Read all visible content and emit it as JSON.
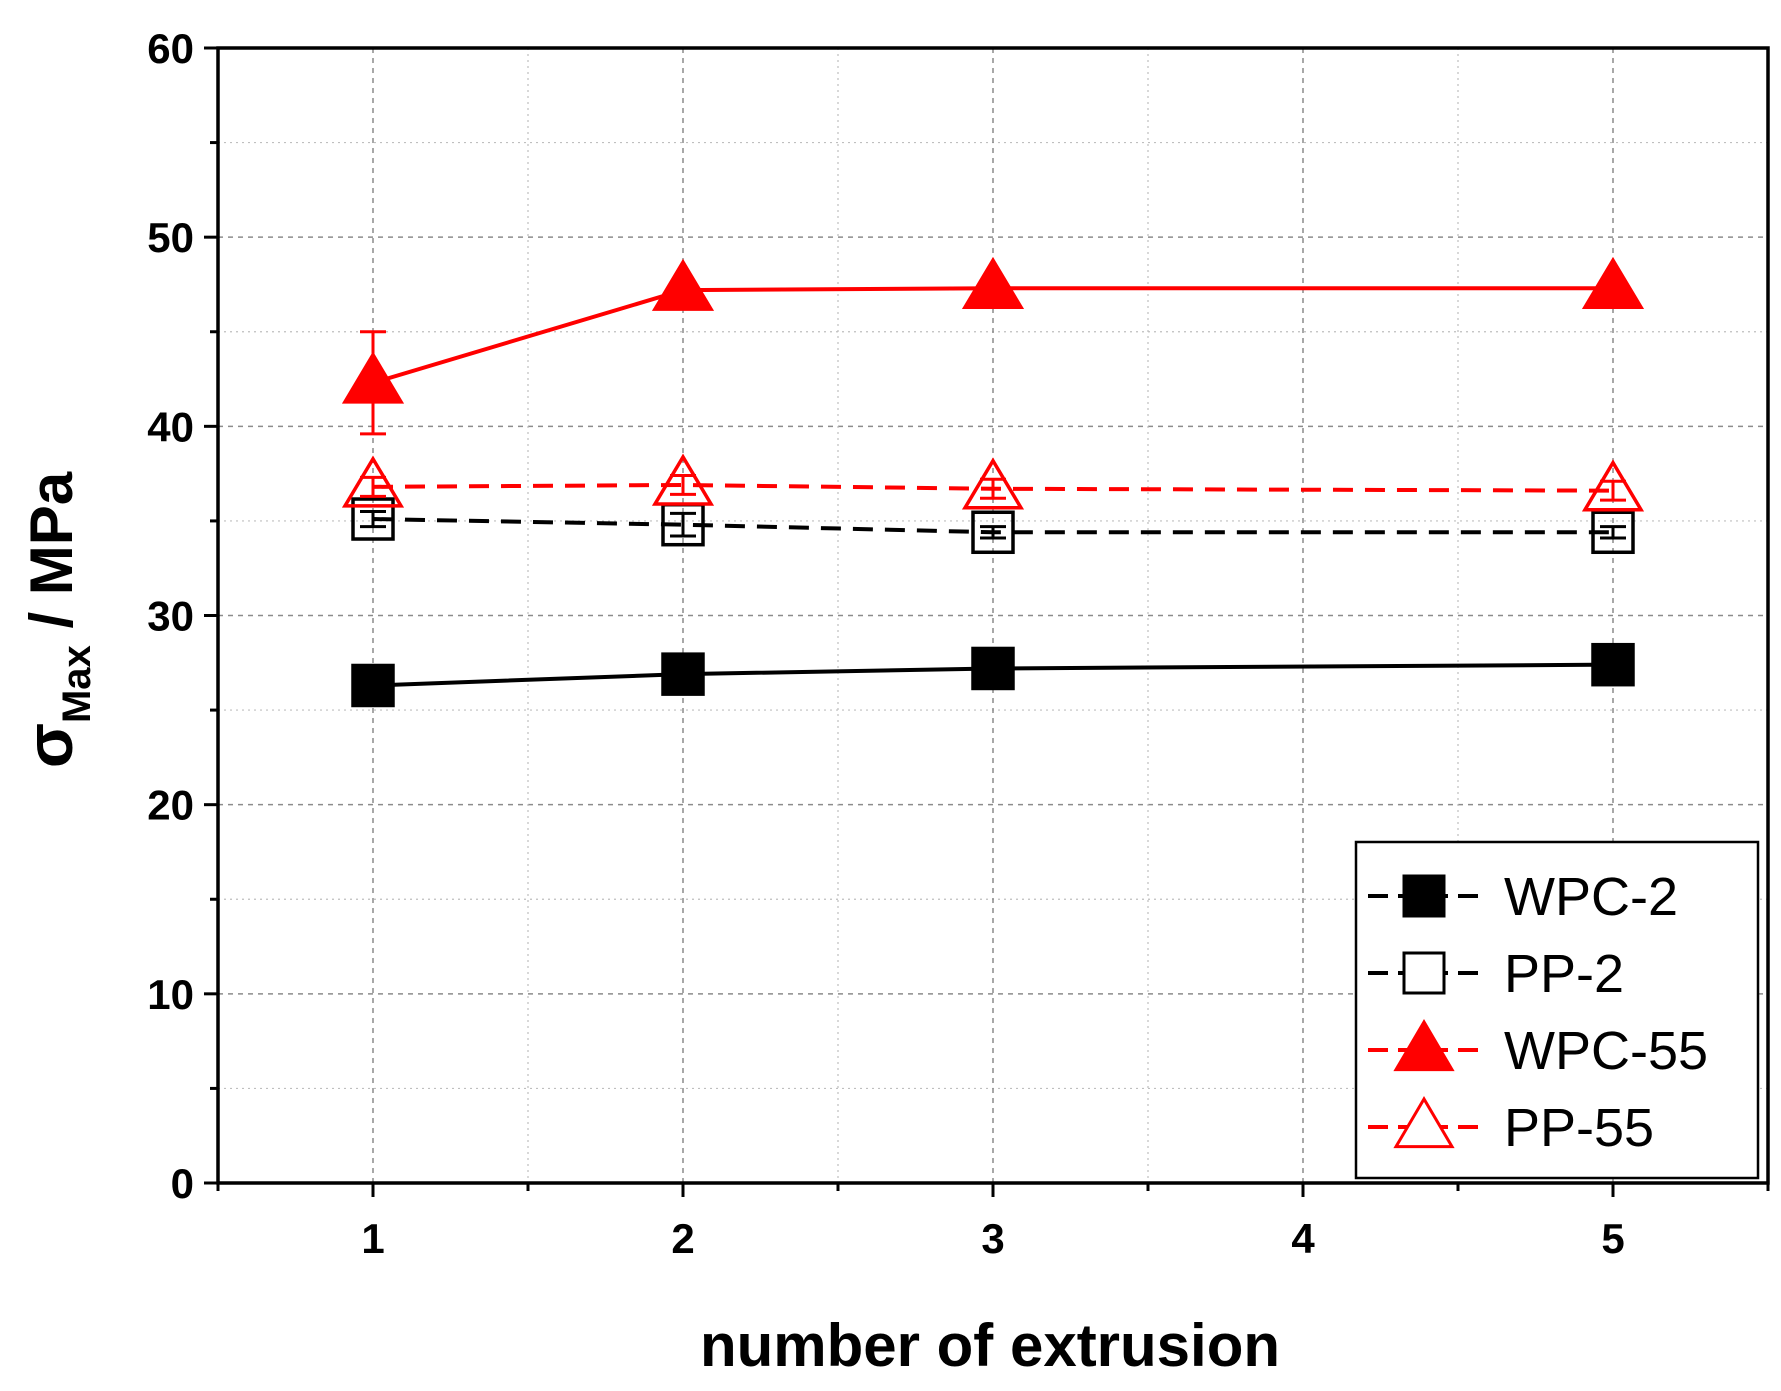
{
  "chart_data": {
    "type": "line",
    "title": "",
    "xlabel": "number of extrusion",
    "ylabel": {
      "symbol": "σ",
      "subscript": "Max",
      "rest": " / MPa"
    },
    "xlim": [
      0.5,
      5.5
    ],
    "ylim": [
      0,
      60
    ],
    "xticks": [
      1,
      2,
      3,
      4,
      5
    ],
    "yticks": [
      0,
      10,
      20,
      30,
      40,
      50,
      60
    ],
    "grid": true,
    "legend_position": "bottom-right",
    "x": [
      1,
      2,
      3,
      5
    ],
    "series": [
      {
        "name": "WPC-2",
        "values": [
          26.3,
          26.9,
          27.2,
          27.4
        ],
        "errors": [
          0.3,
          0.3,
          0.3,
          0.3
        ],
        "color": "#000000",
        "marker": "square",
        "filled": true,
        "line": "solid"
      },
      {
        "name": "PP-2",
        "values": [
          35.1,
          34.8,
          34.4,
          34.4
        ],
        "errors": [
          0.4,
          0.6,
          0.3,
          0.3
        ],
        "color": "#000000",
        "marker": "square",
        "filled": false,
        "line": "dashed"
      },
      {
        "name": "WPC-55",
        "values": [
          42.3,
          47.2,
          47.3,
          47.3
        ],
        "errors": [
          2.7,
          0.3,
          0.3,
          0.3
        ],
        "color": "#ff0000",
        "marker": "triangle",
        "filled": true,
        "line": "solid"
      },
      {
        "name": "PP-55",
        "values": [
          36.8,
          36.9,
          36.7,
          36.6
        ],
        "errors": [
          0.5,
          0.5,
          0.5,
          0.5
        ],
        "color": "#ff0000",
        "marker": "triangle",
        "filled": false,
        "line": "dashed"
      }
    ]
  }
}
